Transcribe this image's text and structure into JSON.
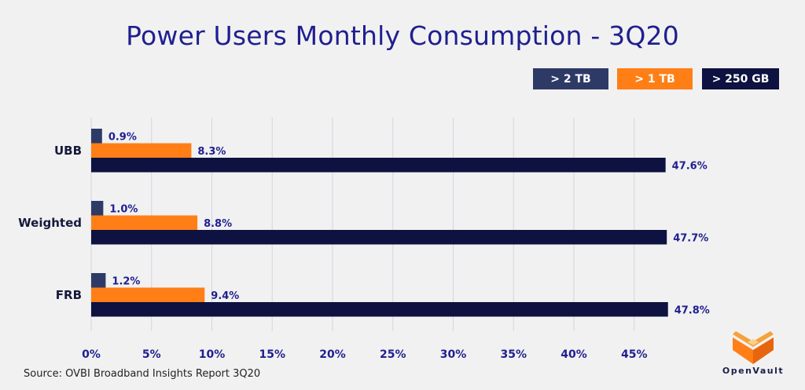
{
  "chart_data": {
    "type": "bar",
    "orientation": "horizontal",
    "title": "Power Users Monthly Consumption - 3Q20",
    "categories": [
      "UBB",
      "Weighted",
      "FRB"
    ],
    "series": [
      {
        "name": "> 2 TB",
        "color": "#2e3a66",
        "values": [
          0.9,
          1.0,
          1.2
        ],
        "labels": [
          "0.9%",
          "1.0%",
          "1.2%"
        ]
      },
      {
        "name": "> 1 TB",
        "color": "#ff7f16",
        "values": [
          8.3,
          8.8,
          9.4
        ],
        "labels": [
          "8.3%",
          "8.8%",
          "9.4%"
        ]
      },
      {
        "name": "> 250 GB",
        "color": "#0d1240",
        "values": [
          47.6,
          47.7,
          47.8
        ],
        "labels": [
          "47.6%",
          "47.7%",
          "47.8%"
        ]
      }
    ],
    "xlim": [
      0,
      50
    ],
    "xticks": [
      0,
      5,
      10,
      15,
      20,
      25,
      30,
      35,
      40,
      45
    ],
    "xtick_labels": [
      "0%",
      "5%",
      "10%",
      "15%",
      "20%",
      "25%",
      "30%",
      "35%",
      "40%",
      "45%"
    ],
    "grid": "vertical",
    "legend_position": "top-right"
  },
  "source": "Source: OVBI Broadband Insights Report 3Q20",
  "logo": {
    "text": "OpenVault",
    "icon": "openvault-logo-icon"
  }
}
